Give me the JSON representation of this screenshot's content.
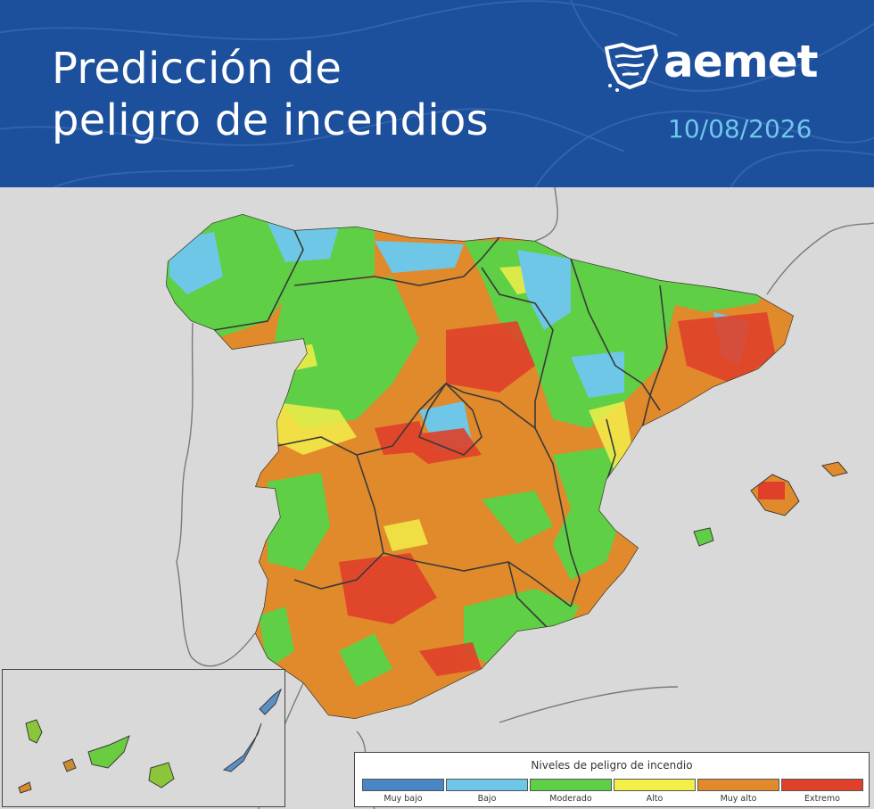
{
  "header": {
    "title_line1": "Predicción de",
    "title_line2": "peligro de incendios",
    "brand": "aemet",
    "date": "10/08/2026",
    "background_color": "#1c4f9c",
    "date_color": "#6fc7ec"
  },
  "legend": {
    "title": "Niveles de peligro de incendio",
    "levels": [
      {
        "label": "Muy bajo",
        "color": "#4a86c5"
      },
      {
        "label": "Bajo",
        "color": "#6ec7e6"
      },
      {
        "label": "Moderado",
        "color": "#5fcf45"
      },
      {
        "label": "Alto",
        "color": "#f2ee4a"
      },
      {
        "label": "Muy alto",
        "color": "#e08a2c"
      },
      {
        "label": "Extremo",
        "color": "#e0402a"
      }
    ]
  },
  "map": {
    "sea_color": "#d9d9d9",
    "land_outside_color": "#d9d9d9",
    "border_color": "#3a3a3a"
  }
}
